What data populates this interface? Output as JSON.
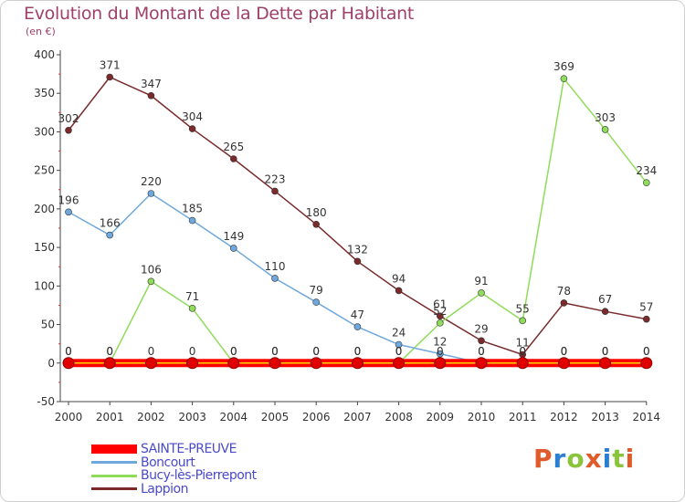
{
  "title": "Evolution du Montant de la Dette par Habitant",
  "subtitle": "(en €)",
  "logo": {
    "text": "Proxiti",
    "colors": [
      "#e05a2a",
      "#2a7fd4",
      "#8ac43a",
      "#e05a2a",
      "#2a7fd4",
      "#8ac43a",
      "#e05a2a"
    ]
  },
  "chart_data": {
    "type": "line",
    "title": "Evolution du Montant de la Dette par Habitant",
    "ylabel": "(en €)",
    "xlabel": "",
    "ylim": [
      -50,
      400
    ],
    "yticks": [
      -50,
      0,
      50,
      100,
      150,
      200,
      250,
      300,
      350,
      400
    ],
    "x": [
      "2000",
      "2001",
      "2002",
      "2003",
      "2004",
      "2005",
      "2006",
      "2007",
      "2008",
      "2009",
      "2010",
      "2011",
      "2012",
      "2013",
      "2014"
    ],
    "grid": false,
    "legend_position": "bottom-left",
    "series": [
      {
        "name": "SAINTE-PREUVE",
        "color": "#ff0000",
        "values": [
          0,
          0,
          0,
          0,
          0,
          0,
          0,
          0,
          0,
          0,
          0,
          0,
          0,
          0,
          0
        ]
      },
      {
        "name": "Boncourt",
        "color": "#6fa8dc",
        "values": [
          196,
          166,
          220,
          185,
          149,
          110,
          79,
          47,
          24,
          12,
          0,
          0,
          0,
          0,
          0
        ]
      },
      {
        "name": "Bucy-lès-Pierrepont",
        "color": "#8fdc5a",
        "values": [
          0,
          0,
          106,
          71,
          0,
          0,
          0,
          0,
          0,
          52,
          91,
          55,
          369,
          303,
          234
        ]
      },
      {
        "name": "Lappion",
        "color": "#7a2a2a",
        "values": [
          302,
          371,
          347,
          304,
          265,
          223,
          180,
          132,
          94,
          61,
          29,
          11,
          78,
          67,
          57
        ]
      }
    ],
    "data_labels": [
      {
        "series": "SAINTE-PREUVE",
        "labels": [
          "0",
          "0",
          "0",
          "0",
          "0",
          "0",
          "0",
          "0",
          "0",
          "0",
          "0",
          "0",
          "0",
          "0",
          "0"
        ]
      },
      {
        "series": "Boncourt",
        "labels": [
          "196",
          "166",
          "220",
          "185",
          "149",
          "110",
          "79",
          "47",
          "24",
          "12",
          "0",
          "0",
          "0",
          "0",
          "0"
        ]
      },
      {
        "series": "Bucy-lès-Pierrepont",
        "labels": [
          "0",
          "0",
          "106",
          "71",
          "0",
          "0",
          "0",
          "0",
          "0",
          "52",
          "91",
          "55",
          "369",
          "303",
          "234"
        ]
      },
      {
        "series": "Lappion",
        "labels": [
          "302",
          "371",
          "347",
          "304",
          "265",
          "223",
          "180",
          "132",
          "94",
          "61",
          "29",
          "11",
          "78",
          "67",
          "57"
        ]
      }
    ]
  }
}
